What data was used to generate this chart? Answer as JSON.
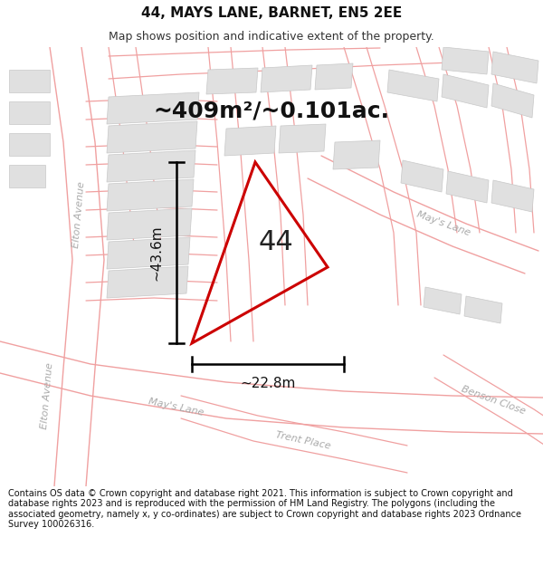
{
  "title": "44, MAYS LANE, BARNET, EN5 2EE",
  "subtitle": "Map shows position and indicative extent of the property.",
  "area_label": "~409m²/~0.101ac.",
  "property_number": "44",
  "dim_vertical": "~43.6m",
  "dim_horizontal": "~22.8m",
  "footer": "Contains OS data © Crown copyright and database right 2021. This information is subject to Crown copyright and database rights 2023 and is reproduced with the permission of HM Land Registry. The polygons (including the associated geometry, namely x, y co-ordinates) are subject to Crown copyright and database rights 2023 Ordnance Survey 100026316.",
  "bg_color": "#ffffff",
  "street_line_color": "#f0a0a0",
  "building_color": "#e0e0e0",
  "building_edge": "#cccccc",
  "property_color": "#cc0000",
  "title_fontsize": 11,
  "subtitle_fontsize": 9,
  "area_fontsize": 18,
  "number_fontsize": 22,
  "dim_fontsize": 11,
  "footer_fontsize": 7,
  "street_label_color": "#aaaaaa",
  "street_label_size": 8
}
